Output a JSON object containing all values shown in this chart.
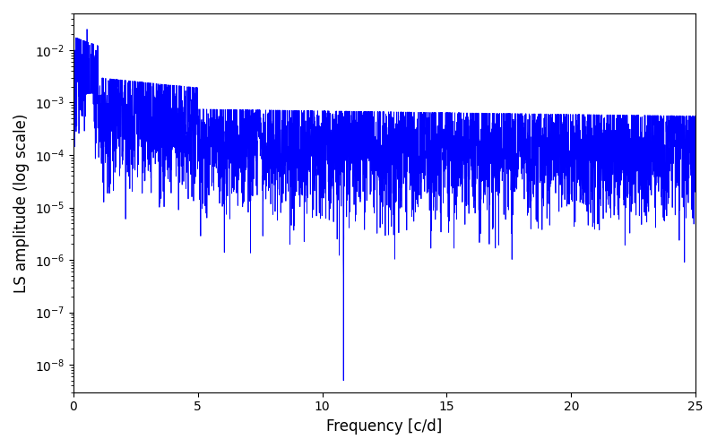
{
  "xlabel": "Frequency [c/d]",
  "ylabel": "LS amplitude (log scale)",
  "line_color": "#0000ff",
  "line_width": 0.6,
  "xlim": [
    0,
    25
  ],
  "ylim": [
    3e-09,
    0.05
  ],
  "figsize": [
    8.0,
    5.0
  ],
  "dpi": 100,
  "freq_min": 0.0,
  "freq_max": 25.0,
  "n_points": 5000,
  "seed": 123
}
